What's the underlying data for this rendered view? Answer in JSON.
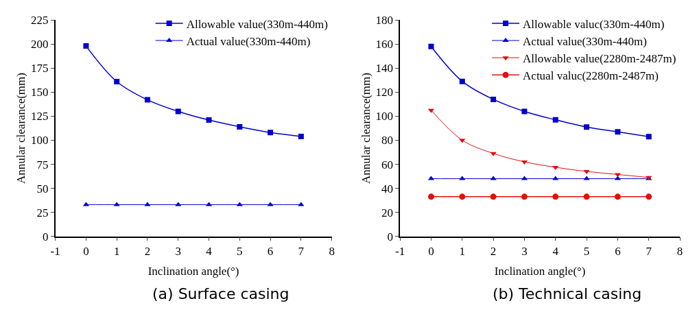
{
  "chart_data": [
    {
      "type": "line",
      "xlabel": "Inclination angle(°)",
      "ylabel": "Annular clearance(mm)",
      "annotations": [
        "(a) Surface casing"
      ],
      "x": [
        0,
        1,
        2,
        3,
        4,
        5,
        6,
        7
      ],
      "xlim": [
        -1,
        8
      ],
      "xticks": [
        -1,
        0,
        1,
        2,
        3,
        4,
        5,
        6,
        7,
        8
      ],
      "ylim": [
        0,
        225
      ],
      "yticks": [
        0,
        25,
        50,
        75,
        100,
        125,
        150,
        175,
        200,
        225
      ],
      "legend": "top right",
      "series": [
        {
          "name": "Allowable value(330m-440m)",
          "color": "#0000cc",
          "marker": "square",
          "values": [
            198,
            161,
            142,
            130,
            121,
            114,
            108,
            104
          ]
        },
        {
          "name": "Actual value(330m-440m)",
          "color": "#0000cc",
          "marker": "triangle",
          "values": [
            33,
            33,
            33,
            33,
            33,
            33,
            33,
            33
          ]
        }
      ]
    },
    {
      "type": "line",
      "xlabel": "Inclination angle(°)",
      "ylabel": "Annular clearance(mm)",
      "annotations": [
        "(b) Technical casing"
      ],
      "x": [
        0,
        1,
        2,
        3,
        4,
        5,
        6,
        7
      ],
      "xlim": [
        -1,
        8
      ],
      "xticks": [
        -1,
        0,
        1,
        2,
        3,
        4,
        5,
        6,
        7,
        8
      ],
      "ylim": [
        0,
        180
      ],
      "yticks": [
        0,
        20,
        40,
        60,
        80,
        100,
        120,
        140,
        160,
        180
      ],
      "legend": "top right",
      "series": [
        {
          "name": "Allowable valuc(330m-440m)",
          "color": "#0000cc",
          "marker": "square",
          "values": [
            158,
            129,
            114,
            104,
            97,
            91,
            87,
            83
          ]
        },
        {
          "name": "Actual value(330m-440m)",
          "color": "#0000cc",
          "marker": "triangle",
          "values": [
            48,
            48,
            48,
            48,
            48,
            48,
            48,
            48
          ]
        },
        {
          "name": "Allowable value(2280m-2487m)",
          "color": "#dd1111",
          "marker": "triangle-down",
          "values": [
            105,
            80,
            69,
            62,
            57.5,
            54,
            51.5,
            49
          ]
        },
        {
          "name": "Actual valuc(2280m-2487m)",
          "color": "#dd1111",
          "marker": "circle",
          "values": [
            33,
            33,
            33,
            33,
            33,
            33,
            33,
            33
          ]
        }
      ]
    }
  ]
}
